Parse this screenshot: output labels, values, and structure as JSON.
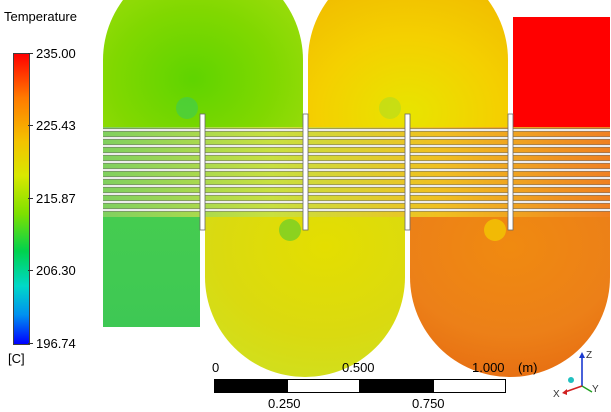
{
  "legend": {
    "title": "Temperature",
    "unit": "[C]",
    "ticks": [
      "235.00",
      "225.43",
      "215.87",
      "206.30",
      "196.74"
    ]
  },
  "scale_bar": {
    "unit": "(m)",
    "top_labels": [
      "0",
      "0.500",
      "1.000"
    ],
    "bottom_labels": [
      "0.250",
      "0.750"
    ]
  },
  "triad": {
    "z": "Z",
    "x": "X",
    "y": "Y"
  },
  "colors": {
    "hot": "#ff0000",
    "warm": "#f07a18",
    "mid": "#e8e000",
    "cool": "#7ed63a",
    "cold": "#0000ff"
  }
}
